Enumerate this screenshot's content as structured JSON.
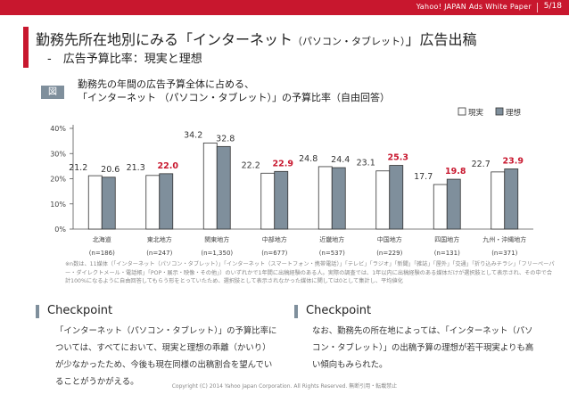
{
  "header": {
    "brand": "Yahoo! JAPAN Ads White Paper",
    "page": "5/18",
    "accent_color": "#c8172e"
  },
  "title": {
    "line1_main": "勤務先所在地別にみる「インターネット",
    "line1_small": "（パソコン・タブレット）",
    "line1_end": "」広告出稿",
    "line2": "-　広告予算比率：現実と理想"
  },
  "figure": {
    "badge": "図",
    "desc_line1": "勤務先の年間の広告予算全体に占める、",
    "desc_line2": "「インターネット （パソコン・タブレット）」の予算比率（自由回答）"
  },
  "chart_data": {
    "type": "bar",
    "title": "",
    "xlabel": "",
    "ylabel": "",
    "ylim": [
      0,
      40
    ],
    "yticks": [
      "0%",
      "10%",
      "20%",
      "30%",
      "40%"
    ],
    "legend_position": "top-right",
    "categories": [
      "北海道",
      "東北地方",
      "関東地方",
      "中部地方",
      "近畿地方",
      "中国地方",
      "四国地方",
      "九州・沖縄地方"
    ],
    "sample_sizes": [
      "(n=186)",
      "(n=247)",
      "(n=1,350)",
      "(n=677)",
      "(n=537)",
      "(n=229)",
      "(n=131)",
      "(n=371)"
    ],
    "series": [
      {
        "name": "現実",
        "values": [
          21.2,
          21.3,
          34.2,
          22.2,
          24.8,
          23.1,
          17.7,
          22.7
        ],
        "color": "#ffffff",
        "stroke": "#333333",
        "label_color": "#333333"
      },
      {
        "name": "理想",
        "values": [
          20.6,
          22.0,
          32.8,
          22.9,
          24.4,
          25.3,
          19.8,
          23.9
        ],
        "color": "#7f8f9c",
        "stroke": "#333333",
        "label_color": "#333333",
        "highlight_color": "#c8172e",
        "highlight": [
          false,
          true,
          false,
          true,
          false,
          true,
          true,
          true
        ]
      }
    ]
  },
  "footnote": "※n数は、11媒体（「インターネット（パソコン・タブレット）」「インターネット（スマートフォン・携帯電話）」「テレビ」「ラジオ」「新聞」「雑誌」「屋外」「交通」「折り込みチラシ」「フリーペーパー・ダイレクトメール・電話帳」「POP・展示・映像・その他」）のいずれかで1年間に出稿経験のある人。実際の調査では、1年以内に出稿経験のある媒体だけが選択肢として表示され、その中で合計100%になるように自由回答してもらう形をとっていたため、選択肢として表示されなかった媒体に関しては0として集計し、平均値化",
  "checkpoints": [
    {
      "title": "Checkpoint",
      "body": "「インターネット（パソコン・タブレット）」の予算比率については、すべてにおいて、現実と理想の乖離（かいり）が少なかったため、今後も現在同様の出稿割合を望んでいることがうかがえる。"
    },
    {
      "title": "Checkpoint",
      "body": "なお、勤務先の所在地によっては、「インターネット（パソコン・タブレット）」の出稿予算の理想が若干現実よりも高い傾向もみられた。"
    }
  ],
  "copyright": "Copyright (C) 2014 Yahoo Japan Corporation. All Rights Reserved. 無断引用・転載禁止"
}
